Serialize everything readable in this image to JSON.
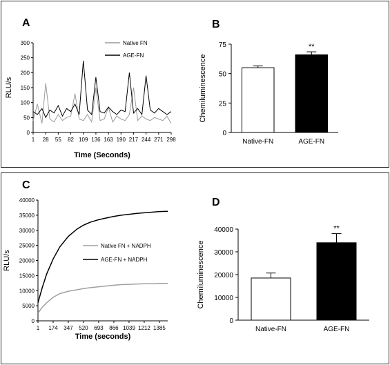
{
  "panels": {
    "A": {
      "letter": "A"
    },
    "B": {
      "letter": "B"
    },
    "C": {
      "letter": "C"
    },
    "D": {
      "letter": "D"
    }
  },
  "chart_data": [
    {
      "panel": "A",
      "type": "line",
      "xlabel": "Time (Seconds)",
      "ylabel": "RLU/s",
      "ylim": [
        0,
        300
      ],
      "yticks": [
        0,
        50,
        100,
        150,
        200,
        250,
        300
      ],
      "xticks": [
        1,
        28,
        55,
        82,
        109,
        136,
        163,
        190,
        217,
        244,
        271,
        298
      ],
      "xlim": [
        1,
        298
      ],
      "legend_position": "top-right",
      "colors": {
        "Native FN": "#9a9a9a",
        "AGE-FN": "#000000"
      },
      "series": [
        {
          "name": "Native FN",
          "x": [
            1,
            10,
            20,
            28,
            37,
            46,
            55,
            64,
            73,
            82,
            91,
            100,
            109,
            118,
            127,
            136,
            145,
            154,
            163,
            172,
            181,
            190,
            199,
            208,
            217,
            226,
            235,
            244,
            253,
            262,
            271,
            280,
            289,
            298
          ],
          "values": [
            40,
            95,
            30,
            165,
            45,
            35,
            60,
            40,
            50,
            55,
            130,
            45,
            40,
            60,
            35,
            150,
            40,
            45,
            85,
            35,
            55,
            45,
            40,
            60,
            150,
            40,
            55,
            45,
            40,
            50,
            45,
            40,
            55,
            30
          ]
        },
        {
          "name": "AGE-FN",
          "x": [
            1,
            10,
            20,
            28,
            37,
            46,
            55,
            64,
            73,
            82,
            91,
            100,
            109,
            118,
            127,
            136,
            145,
            154,
            163,
            172,
            181,
            190,
            199,
            208,
            217,
            226,
            235,
            244,
            253,
            262,
            271,
            280,
            289,
            298
          ],
          "values": [
            70,
            60,
            80,
            50,
            75,
            65,
            90,
            55,
            80,
            70,
            95,
            60,
            240,
            75,
            60,
            185,
            70,
            65,
            85,
            70,
            60,
            75,
            70,
            200,
            65,
            80,
            60,
            190,
            75,
            65,
            80,
            70,
            60,
            70
          ]
        }
      ]
    },
    {
      "panel": "B",
      "type": "bar",
      "ylabel": "Chemiluminescence",
      "ylim": [
        0,
        75
      ],
      "yticks": [
        0,
        25,
        50,
        75
      ],
      "categories": [
        "Native-FN",
        "AGE-FN"
      ],
      "values": [
        55,
        66
      ],
      "errors": [
        1.5,
        2.5
      ],
      "colors": [
        "#ffffff",
        "#000000"
      ],
      "annotation": "**"
    },
    {
      "panel": "C",
      "type": "line",
      "xlabel": "Time (seconds)",
      "ylabel": "RLU/s",
      "ylim": [
        0,
        40000
      ],
      "yticks": [
        0,
        5000,
        10000,
        15000,
        20000,
        25000,
        30000,
        35000,
        40000
      ],
      "xticks": [
        1,
        174,
        347,
        520,
        693,
        866,
        1039,
        1212,
        1385
      ],
      "xlim": [
        1,
        1480
      ],
      "legend_position": "center",
      "colors": {
        "Native FN + NADPH": "#a0a0a0",
        "AGE-FN + NADPH": "#000000"
      },
      "series": [
        {
          "name": "Native FN + NADPH",
          "x": [
            1,
            50,
            100,
            174,
            250,
            347,
            450,
            520,
            600,
            693,
            800,
            866,
            950,
            1039,
            1130,
            1212,
            1300,
            1385,
            1480
          ],
          "values": [
            2500,
            4500,
            6000,
            7800,
            9000,
            9800,
            10300,
            10700,
            11000,
            11300,
            11600,
            11800,
            12000,
            12100,
            12200,
            12300,
            12300,
            12400,
            12400
          ]
        },
        {
          "name": "AGE-FN + NADPH",
          "x": [
            1,
            50,
            100,
            174,
            250,
            347,
            450,
            520,
            600,
            693,
            800,
            866,
            950,
            1039,
            1130,
            1212,
            1300,
            1385,
            1480
          ],
          "values": [
            6000,
            11000,
            15500,
            20500,
            24500,
            28000,
            30500,
            31700,
            32700,
            33500,
            34200,
            34600,
            35000,
            35300,
            35600,
            35800,
            36000,
            36200,
            36300
          ]
        }
      ]
    },
    {
      "panel": "D",
      "type": "bar",
      "ylabel": "Chemiluminescence",
      "ylim": [
        0,
        40000
      ],
      "yticks": [
        0,
        10000,
        20000,
        30000,
        40000
      ],
      "categories": [
        "Native-FN",
        "AGE-FN"
      ],
      "values": [
        18500,
        34000
      ],
      "errors": [
        2200,
        4000
      ],
      "colors": [
        "#ffffff",
        "#000000"
      ],
      "annotation": "**"
    }
  ]
}
